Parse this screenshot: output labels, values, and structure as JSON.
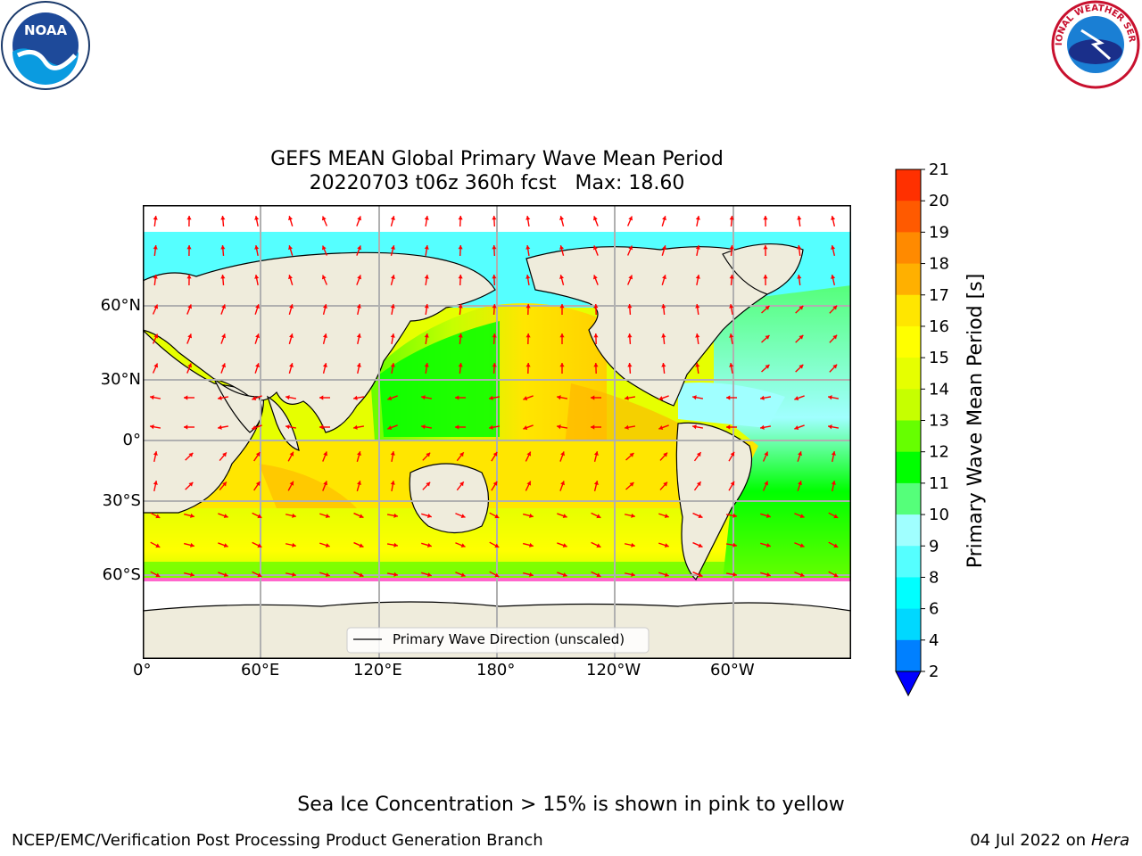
{
  "title_line1": "GEFS MEAN Global Primary Wave Mean Period",
  "title_line2": "20220703 t06z 360h fcst   Max: 18.60",
  "legend_label": "Primary Wave Direction (unscaled)",
  "colorbar_label": "Primary Wave Mean Period [s]",
  "colorbar_ticks": [
    "2",
    "4",
    "6",
    "8",
    "9",
    "10",
    "11",
    "12",
    "13",
    "14",
    "15",
    "16",
    "17",
    "18",
    "19",
    "20",
    "21"
  ],
  "colorbar_colors": [
    "#0080ff",
    "#00d8ff",
    "#00ffff",
    "#55ffff",
    "#a0ffff",
    "#55ff7a",
    "#00ff00",
    "#66ff00",
    "#c6ff00",
    "#e6ff00",
    "#ffff00",
    "#ffe600",
    "#ffb000",
    "#ff8a00",
    "#ff5a00",
    "#ff3000",
    "#ff0000"
  ],
  "colorbar_under_color": "#0000ff",
  "lat_labels": [
    "60°N",
    "30°N",
    "0°",
    "30°S",
    "60°S"
  ],
  "lon_labels": [
    "0°",
    "60°E",
    "120°E",
    "180°",
    "120°W",
    "60°W"
  ],
  "note": "Sea Ice Concentration > 15% is shown in pink to yellow",
  "credit": "NCEP/EMC/Verification Post Processing Product Generation Branch",
  "date_prefix": "04 Jul 2022 on ",
  "date_machine": "Hera",
  "logos": {
    "left": "NOAA",
    "right": "NATIONAL WEATHER SERVICE"
  },
  "colors": {
    "land": "#efecdc",
    "arrow": "#ff0000",
    "grid": "#b0b0b0",
    "no_data": "#ffffff"
  }
}
